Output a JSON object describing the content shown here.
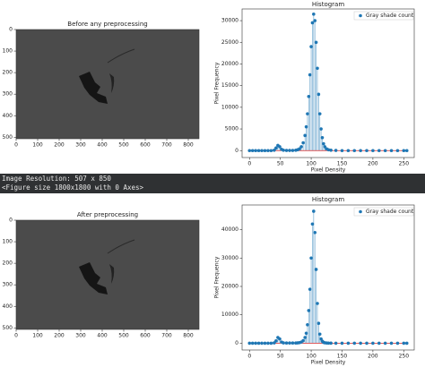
{
  "chart_data": [
    {
      "type": "image",
      "title": "Before any preprocessing",
      "xlim": [
        0,
        850
      ],
      "ylim": [
        0,
        507
      ],
      "y_inverted": true,
      "xticks": [
        0,
        100,
        200,
        300,
        400,
        500,
        600,
        700,
        800
      ],
      "yticks": [
        0,
        100,
        200,
        300,
        400,
        500
      ]
    },
    {
      "type": "stem",
      "title": "Histogram",
      "xlabel": "Pixel Density",
      "ylabel": "Pixel Frequency",
      "x": [
        0,
        5,
        10,
        15,
        20,
        25,
        30,
        35,
        40,
        43,
        46,
        49,
        52,
        55,
        60,
        65,
        70,
        75,
        78,
        81,
        84,
        87,
        90,
        92,
        94,
        96,
        98,
        100,
        102,
        104,
        106,
        108,
        110,
        112,
        114,
        116,
        118,
        120,
        122,
        125,
        128,
        132,
        140,
        150,
        160,
        170,
        180,
        190,
        200,
        210,
        220,
        230,
        240,
        250,
        255
      ],
      "series": [
        {
          "name": "Gray shade count",
          "color": "#1f77b4",
          "values": [
            0,
            0,
            0,
            0,
            0,
            0,
            0,
            0,
            100,
            600,
            1200,
            900,
            300,
            100,
            50,
            50,
            50,
            100,
            200,
            400,
            900,
            1800,
            3500,
            5500,
            8500,
            12500,
            17500,
            24000,
            29500,
            31500,
            30000,
            25000,
            19000,
            13000,
            8500,
            5000,
            3000,
            1600,
            900,
            400,
            200,
            100,
            50,
            0,
            0,
            0,
            0,
            0,
            0,
            0,
            0,
            0,
            0,
            0,
            0
          ]
        }
      ],
      "xlim": [
        -12,
        267
      ],
      "ylim": [
        -1600,
        32700
      ],
      "xticks": [
        0,
        50,
        100,
        150,
        200,
        250
      ],
      "yticks": [
        0,
        5000,
        10000,
        15000,
        20000,
        25000,
        30000
      ],
      "legend": "upper right"
    },
    {
      "type": "image",
      "title": "After preprocessing",
      "xlim": [
        0,
        850
      ],
      "ylim": [
        0,
        507
      ],
      "y_inverted": true,
      "xticks": [
        0,
        100,
        200,
        300,
        400,
        500,
        600,
        700,
        800
      ],
      "yticks": [
        0,
        100,
        200,
        300,
        400,
        500
      ]
    },
    {
      "type": "stem",
      "title": "Histogram",
      "xlabel": "Pixel Density",
      "ylabel": "Pixel Frequency",
      "x": [
        0,
        5,
        10,
        15,
        20,
        25,
        30,
        35,
        40,
        43,
        46,
        49,
        52,
        55,
        60,
        65,
        70,
        75,
        78,
        81,
        84,
        87,
        90,
        92,
        94,
        96,
        98,
        100,
        102,
        104,
        106,
        108,
        110,
        112,
        114,
        116,
        118,
        120,
        122,
        125,
        128,
        132,
        140,
        150,
        160,
        170,
        180,
        190,
        200,
        210,
        220,
        230,
        240,
        250,
        255
      ],
      "series": [
        {
          "name": "Gray shade count",
          "color": "#1f77b4",
          "values": [
            0,
            0,
            0,
            0,
            0,
            0,
            0,
            0,
            100,
            800,
            2000,
            1500,
            400,
            100,
            50,
            50,
            50,
            50,
            100,
            200,
            400,
            900,
            2000,
            3500,
            6500,
            11500,
            19000,
            30000,
            42000,
            46500,
            39000,
            26000,
            14000,
            7000,
            3200,
            1500,
            700,
            300,
            150,
            80,
            40,
            20,
            0,
            0,
            0,
            0,
            0,
            0,
            0,
            0,
            0,
            0,
            0,
            0,
            0
          ]
        }
      ],
      "xlim": [
        -12,
        267
      ],
      "ylim": [
        -2400,
        48700
      ],
      "xticks": [
        0,
        50,
        100,
        150,
        200,
        250
      ],
      "yticks": [
        0,
        10000,
        20000,
        30000,
        40000
      ],
      "legend": "upper right"
    }
  ],
  "console": [
    "Image Resolution: 507 x 850",
    "<Figure size 1800x1800 with 0 Axes>"
  ]
}
